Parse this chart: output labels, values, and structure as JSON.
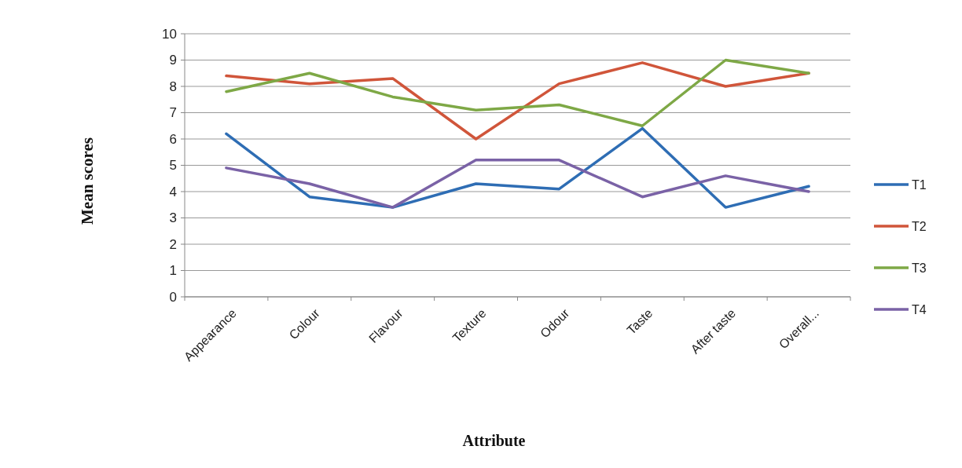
{
  "chart_data": {
    "type": "line",
    "xlabel": "Attribute",
    "ylabel": "Mean scores",
    "categories": [
      "Appearance",
      "Colour",
      "Flavour",
      "Texture",
      "Odour",
      "Taste",
      "After taste",
      "Overall..."
    ],
    "series": [
      {
        "name": "T1",
        "color": "#2e6db4",
        "values": [
          6.2,
          3.8,
          3.4,
          4.3,
          4.1,
          6.4,
          3.4,
          4.2
        ]
      },
      {
        "name": "T2",
        "color": "#d0553a",
        "values": [
          8.4,
          8.1,
          8.3,
          6.0,
          8.1,
          8.9,
          8.0,
          8.5
        ]
      },
      {
        "name": "T3",
        "color": "#7ea846",
        "values": [
          7.8,
          8.5,
          7.6,
          7.1,
          7.3,
          6.5,
          9.0,
          8.5
        ]
      },
      {
        "name": "T4",
        "color": "#7a62a6",
        "values": [
          4.9,
          4.3,
          3.4,
          5.2,
          5.2,
          3.8,
          4.6,
          4.0
        ]
      }
    ],
    "ylim": [
      0,
      10
    ],
    "yticks": [
      0,
      1,
      2,
      3,
      4,
      5,
      6,
      7,
      8,
      9,
      10
    ],
    "grid": "y",
    "legend": "right",
    "marker": "none",
    "line_style": "solid"
  }
}
